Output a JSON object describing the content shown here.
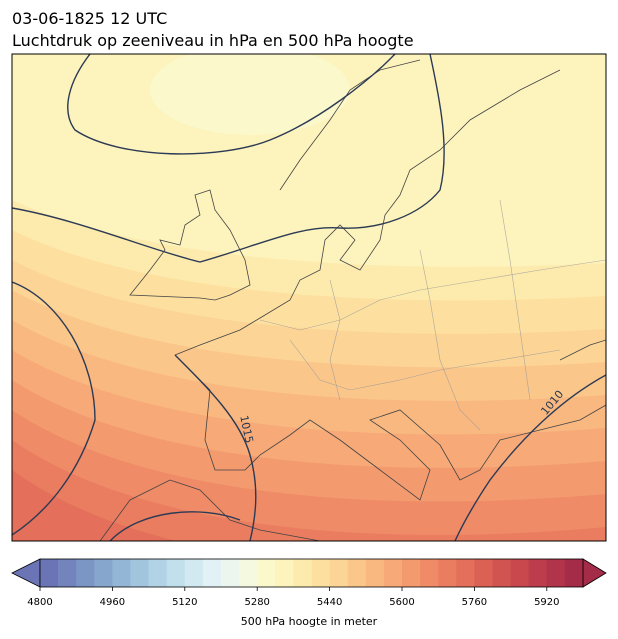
{
  "chart_data": {
    "type": "contour_map",
    "title": "03-06-1825 12 UTC",
    "subtitle": "Luchtdruk op zeeniveau in hPa en 500 hPa hoogte",
    "contour_labels": [
      "1015",
      "1010"
    ],
    "colorbar": {
      "label": "500 hPa hoogte in meter",
      "lim": [
        4800,
        6000
      ],
      "ticks": [
        4800,
        4960,
        5120,
        5280,
        5440,
        5600,
        5760,
        5920
      ],
      "colors": [
        "#6b74b5",
        "#7384bd",
        "#7b95c5",
        "#86a6cd",
        "#93b6d6",
        "#a2c5de",
        "#b2d3e6",
        "#c2dfec",
        "#d2e9f1",
        "#e1f1f5",
        "#ecf6ee",
        "#f5f9e0",
        "#fbf8cc",
        "#fdf3bc",
        "#fdebad",
        "#fde0a0",
        "#fcd495",
        "#fbc68a",
        "#f9b880",
        "#f7a977",
        "#f39a6f",
        "#ef8b67",
        "#ea7d60",
        "#e46f5a",
        "#dc6155",
        "#d25451",
        "#c8484e",
        "#bd3d4c",
        "#b1344a",
        "#a52c48"
      ]
    }
  }
}
